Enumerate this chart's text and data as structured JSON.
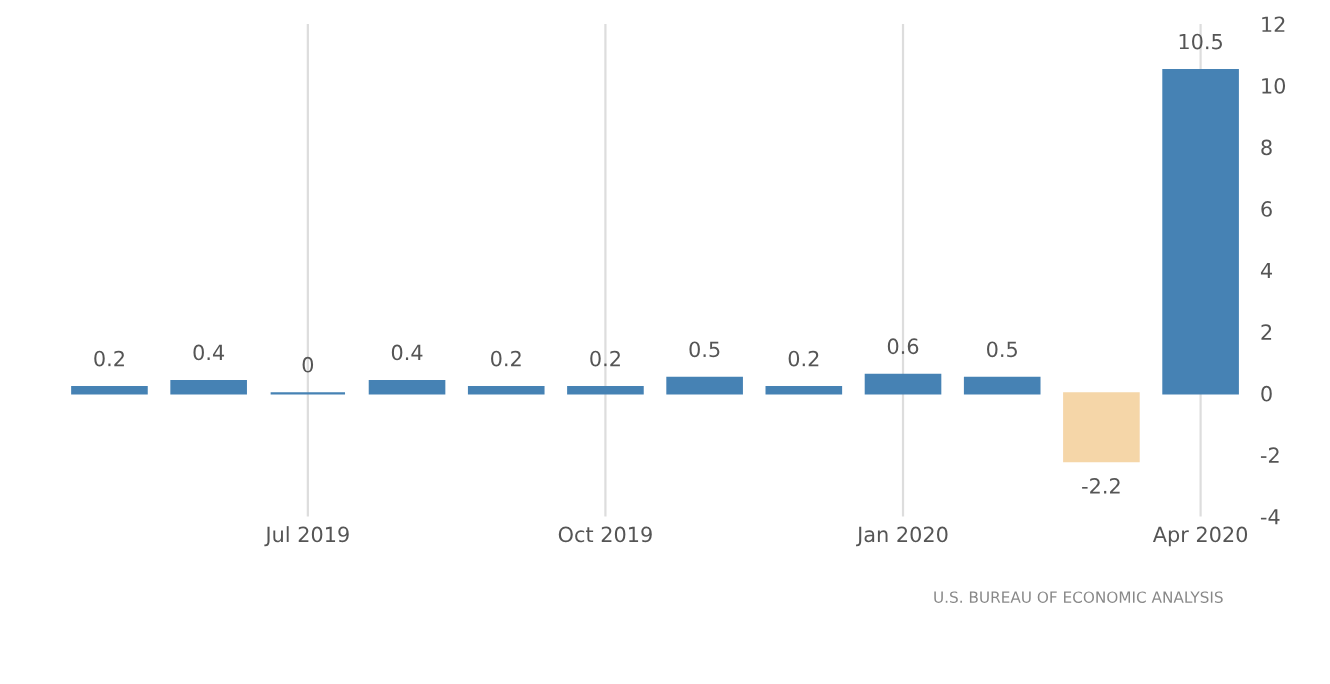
{
  "chart_data": {
    "type": "bar",
    "categories": [
      null,
      null,
      "Jul 2019",
      null,
      null,
      "Oct 2019",
      null,
      null,
      "Jan 2020",
      null,
      null,
      "Apr 2020"
    ],
    "values": [
      0.2,
      0.4,
      0,
      0.4,
      0.2,
      0.2,
      0.5,
      0.2,
      0.6,
      0.5,
      -2.2,
      10.5
    ],
    "colors": [
      "#4682b4",
      "#4682b4",
      "#4682b4",
      "#4682b4",
      "#4682b4",
      "#4682b4",
      "#4682b4",
      "#4682b4",
      "#4682b4",
      "#4682b4",
      "#f5d6a8",
      "#4682b4"
    ],
    "ylim": [
      -4,
      12
    ],
    "yticks": [
      -4,
      -2,
      0,
      2,
      4,
      6,
      8,
      10,
      12
    ],
    "grid": "x",
    "data_labels": true,
    "annotations": [
      "U.S. BUREAU OF ECONOMIC ANALYSIS"
    ]
  }
}
